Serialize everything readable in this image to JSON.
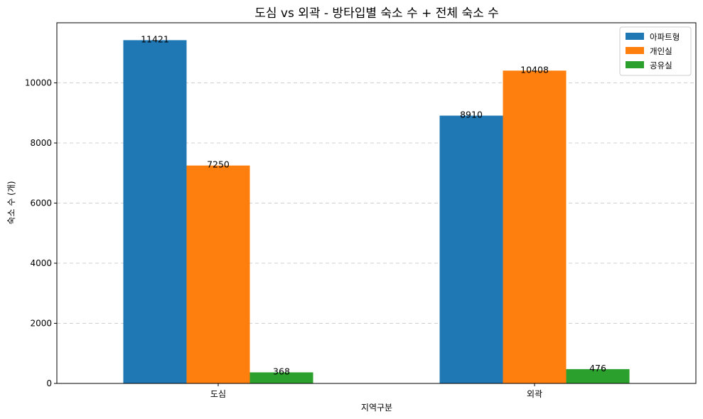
{
  "chart_data": {
    "type": "bar",
    "title": "도심 vs 외곽 - 방타입별 숙소 수 + 전체 숙소 수",
    "xlabel": "지역구분",
    "ylabel": "숙소 수 (개)",
    "categories": [
      "도심",
      "외곽"
    ],
    "series": [
      {
        "name": "아파트형",
        "color": "#1f77b4",
        "values": [
          11421,
          8910
        ]
      },
      {
        "name": "개인실",
        "color": "#ff7f0e",
        "values": [
          7250,
          10408
        ]
      },
      {
        "name": "공유실",
        "color": "#2ca02c",
        "values": [
          368,
          476
        ]
      }
    ],
    "ylim": [
      0,
      12000
    ],
    "yticks": [
      0,
      2000,
      4000,
      6000,
      8000,
      10000
    ],
    "grid": "y-dashed",
    "legend": "top-right"
  }
}
